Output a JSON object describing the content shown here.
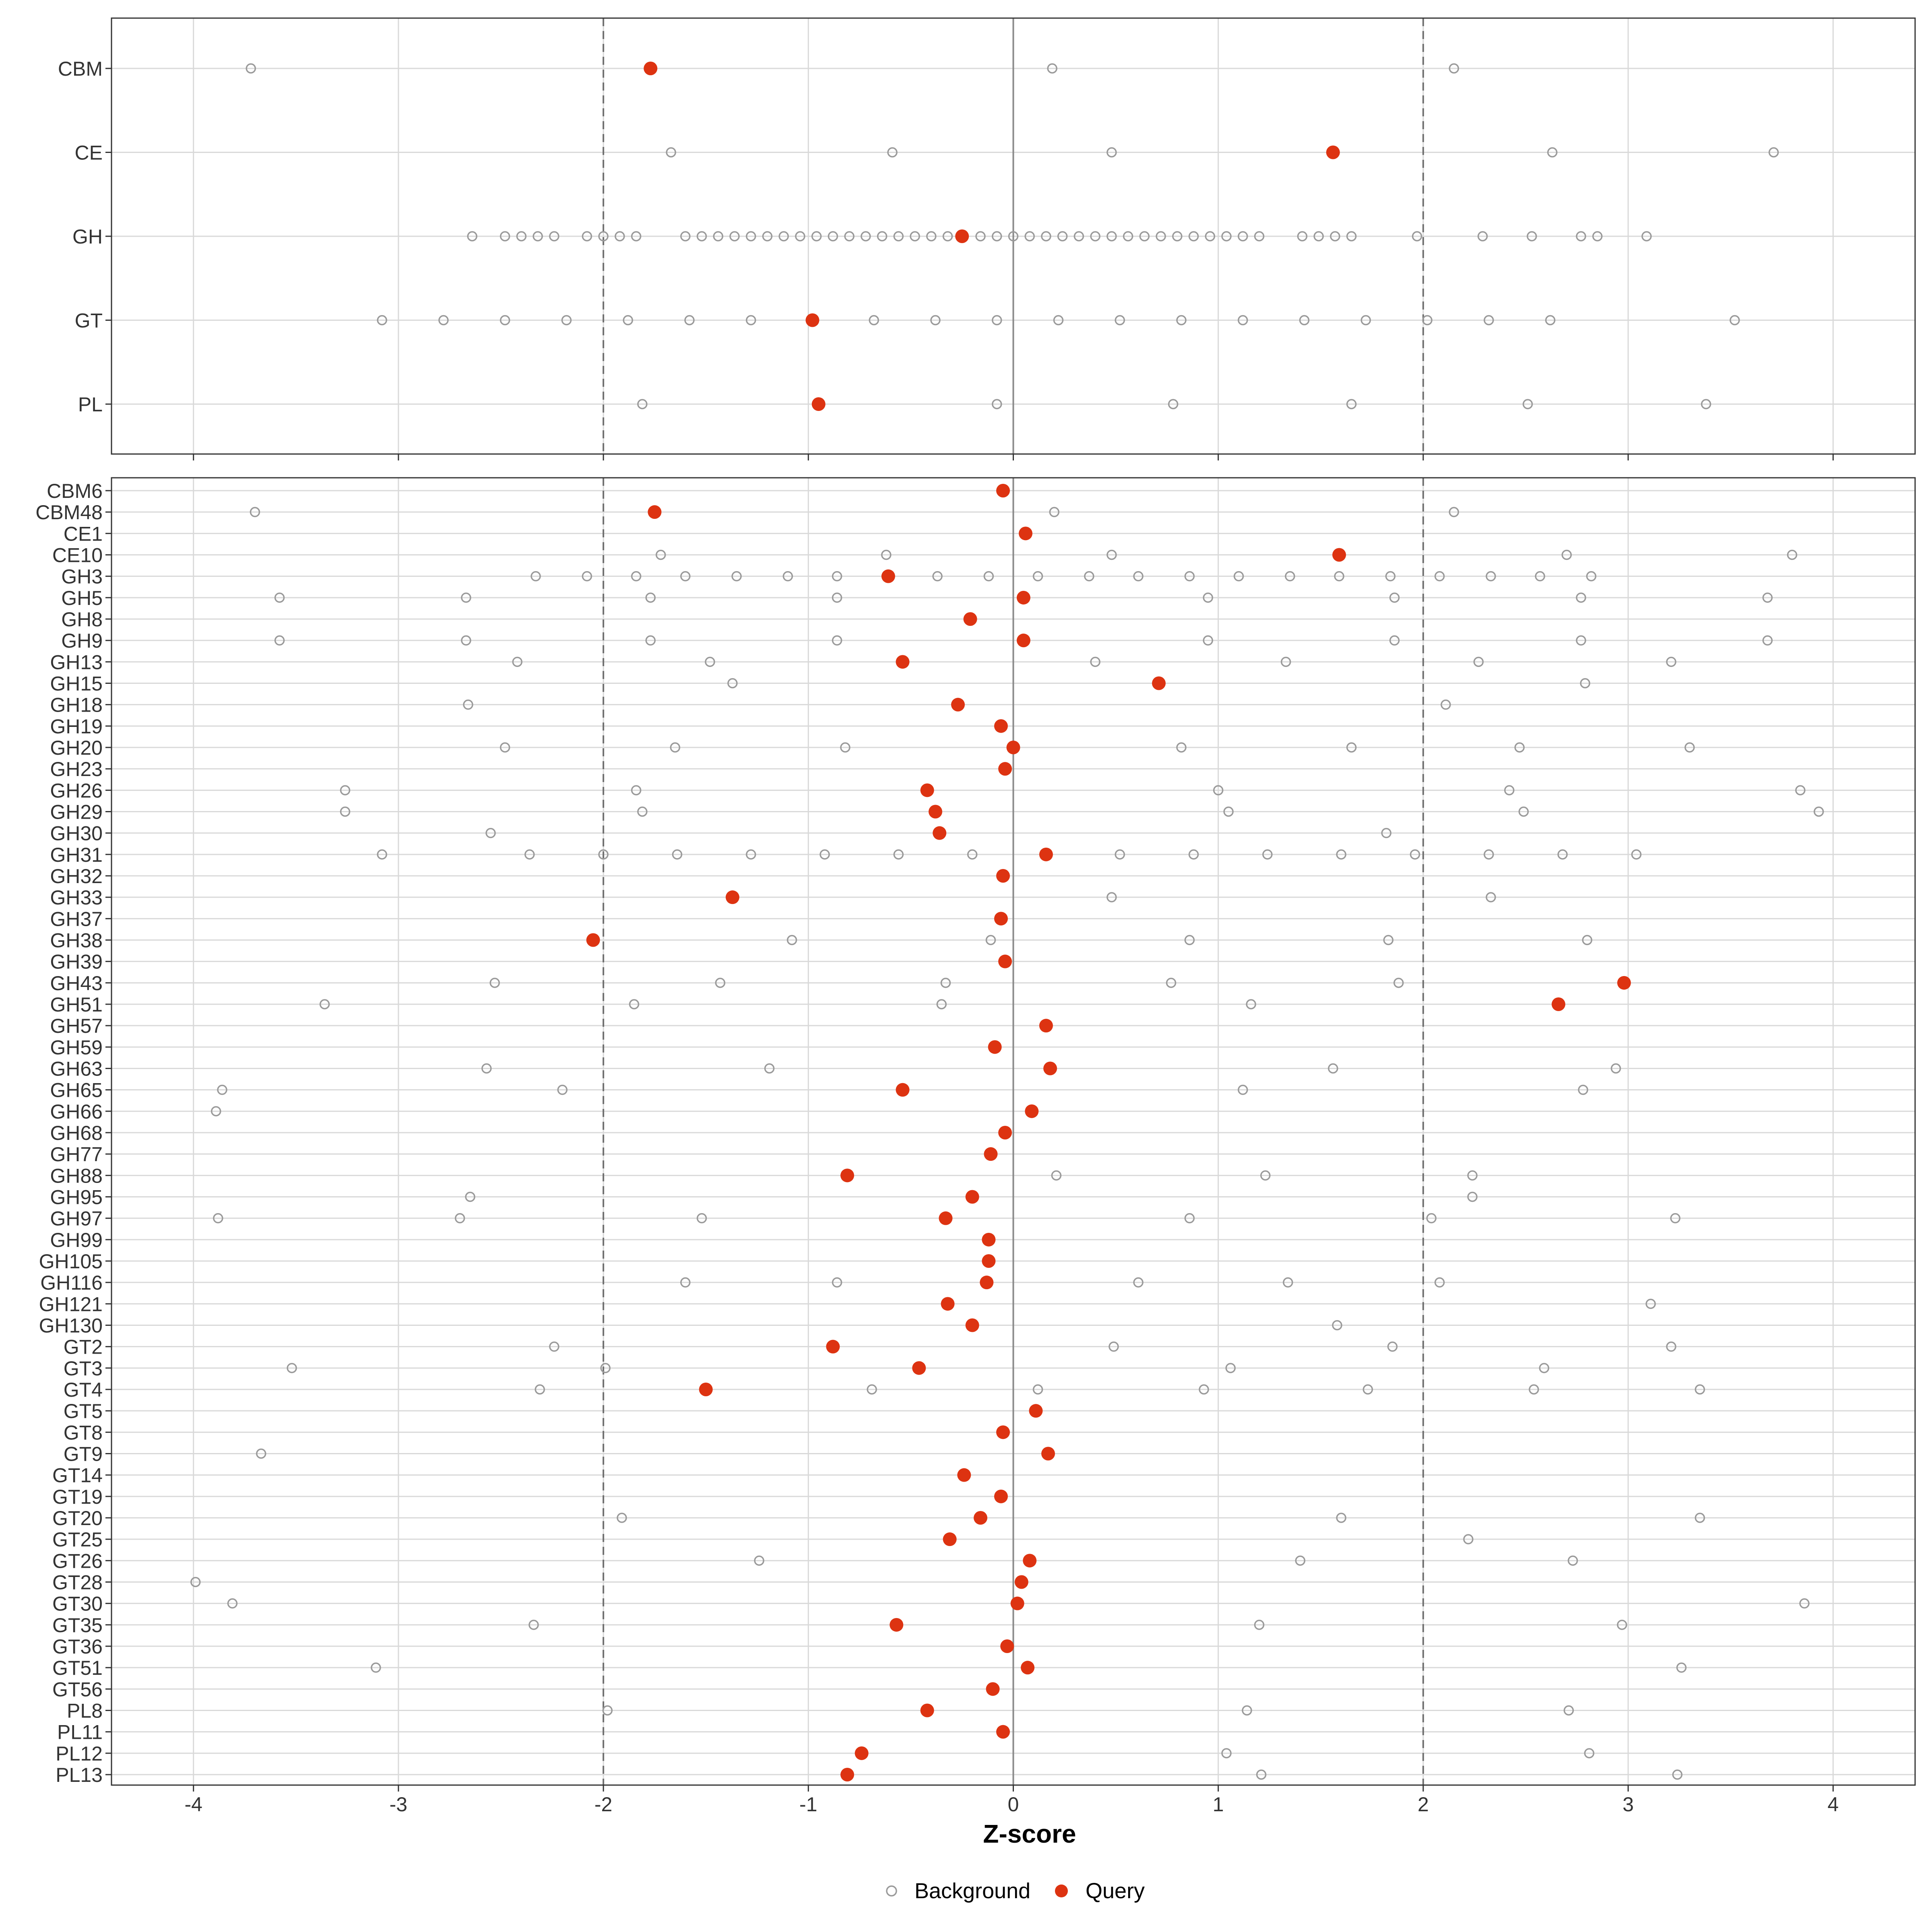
{
  "chart_data": [
    {
      "type": "scatter",
      "panel": "top",
      "categories": [
        "CBM",
        "CE",
        "GH",
        "GT",
        "PL"
      ],
      "xlim": [
        -4.4,
        4.4
      ],
      "series": [
        {
          "name": "Background",
          "points": {
            "CBM": [
              -3.72,
              0.19,
              2.15
            ],
            "CE": [
              -1.67,
              -0.59,
              0.48,
              2.63,
              3.71
            ],
            "GH": [
              -2.64,
              -2.48,
              -2.4,
              -2.32,
              -2.24,
              -2.08,
              -2.0,
              -1.92,
              -1.84,
              -1.6,
              -1.52,
              -1.44,
              -1.36,
              -1.28,
              -1.2,
              -1.12,
              -1.04,
              -0.96,
              -0.88,
              -0.8,
              -0.72,
              -0.64,
              -0.56,
              -0.48,
              -0.4,
              -0.32,
              -0.16,
              -0.08,
              0.0,
              0.08,
              0.16,
              0.24,
              0.32,
              0.4,
              0.48,
              0.56,
              0.64,
              0.72,
              0.8,
              0.88,
              0.96,
              1.04,
              1.12,
              1.2,
              1.41,
              1.49,
              1.57,
              1.65,
              1.97,
              2.29,
              2.53,
              2.77,
              2.85,
              3.09
            ],
            "GT": [
              -3.08,
              -2.78,
              -2.48,
              -2.18,
              -1.88,
              -1.58,
              -1.28,
              -0.68,
              -0.38,
              -0.08,
              0.22,
              0.52,
              0.82,
              1.12,
              1.42,
              1.72,
              2.02,
              2.32,
              2.62,
              3.52
            ],
            "PL": [
              -1.81,
              -0.08,
              0.78,
              1.65,
              2.51,
              3.38
            ]
          }
        },
        {
          "name": "Query",
          "points": {
            "CBM": [
              -1.77
            ],
            "CE": [
              1.56
            ],
            "GH": [
              -0.25
            ],
            "GT": [
              -0.98
            ],
            "PL": [
              -0.95
            ]
          }
        }
      ],
      "reference_lines": [
        -2,
        0,
        2
      ]
    },
    {
      "type": "scatter",
      "panel": "bottom",
      "xlabel": "Z-score",
      "xlim": [
        -4.4,
        4.4
      ],
      "xticks": [
        "-4",
        "-3",
        "-2",
        "-1",
        "0",
        "1",
        "2",
        "3",
        "4"
      ],
      "categories": [
        "CBM6",
        "CBM48",
        "CE1",
        "CE10",
        "GH3",
        "GH5",
        "GH8",
        "GH9",
        "GH13",
        "GH15",
        "GH18",
        "GH19",
        "GH20",
        "GH23",
        "GH26",
        "GH29",
        "GH30",
        "GH31",
        "GH32",
        "GH33",
        "GH37",
        "GH38",
        "GH39",
        "GH43",
        "GH51",
        "GH57",
        "GH59",
        "GH63",
        "GH65",
        "GH66",
        "GH68",
        "GH77",
        "GH88",
        "GH95",
        "GH97",
        "GH99",
        "GH105",
        "GH116",
        "GH121",
        "GH130",
        "GT2",
        "GT3",
        "GT4",
        "GT5",
        "GT8",
        "GT9",
        "GT14",
        "GT19",
        "GT20",
        "GT25",
        "GT26",
        "GT28",
        "GT30",
        "GT35",
        "GT36",
        "GT51",
        "GT56",
        "PL8",
        "PL11",
        "PL12",
        "PL13"
      ],
      "series": [
        {
          "name": "Background",
          "points": {
            "CBM48": [
              -3.7,
              0.2,
              2.15
            ],
            "CE10": [
              -1.72,
              -0.62,
              0.48,
              2.7,
              3.8
            ],
            "GH3": [
              -2.33,
              -2.08,
              -1.84,
              -1.6,
              -1.35,
              -1.1,
              -0.86,
              -0.37,
              -0.12,
              0.12,
              0.37,
              0.61,
              0.86,
              1.1,
              1.35,
              1.59,
              1.84,
              2.08,
              2.33,
              2.57,
              2.82
            ],
            "GH5": [
              -3.58,
              -2.67,
              -1.77,
              -0.86,
              0.95,
              1.86,
              2.77,
              3.68
            ],
            "GH9": [
              -3.58,
              -2.67,
              -1.77,
              -0.86,
              0.95,
              1.86,
              2.77,
              3.68
            ],
            "GH13": [
              -2.42,
              -1.48,
              0.4,
              1.33,
              2.27,
              3.21
            ],
            "GH15": [
              -1.37,
              2.79
            ],
            "GH18": [
              -2.66,
              2.11
            ],
            "GH20": [
              -2.48,
              -1.65,
              -0.82,
              0.82,
              1.65,
              2.47,
              3.3
            ],
            "GH26": [
              -3.26,
              -1.84,
              1.0,
              2.42,
              3.84
            ],
            "GH29": [
              -3.26,
              -1.81,
              1.05,
              2.49,
              3.93
            ],
            "GH30": [
              -2.55,
              1.82
            ],
            "GH31": [
              -3.08,
              -2.36,
              -2.0,
              -1.64,
              -1.28,
              -0.92,
              -0.56,
              -0.2,
              0.52,
              0.88,
              1.24,
              1.6,
              1.96,
              2.32,
              2.68,
              3.04
            ],
            "GH33": [
              0.48,
              2.33
            ],
            "GH38": [
              -1.08,
              -0.11,
              0.86,
              1.83,
              2.8
            ],
            "GH43": [
              -2.53,
              -1.43,
              -0.33,
              0.77,
              1.88
            ],
            "GH51": [
              -3.36,
              -1.85,
              -0.35,
              1.16
            ],
            "GH63": [
              -2.57,
              -1.19,
              1.56,
              2.94
            ],
            "GH65": [
              -3.86,
              -2.2,
              1.12,
              2.78
            ],
            "GH66": [
              -3.89
            ],
            "GH88": [
              0.21,
              1.23,
              2.24
            ],
            "GH95": [
              -2.65,
              2.24
            ],
            "GH97": [
              -3.88,
              -2.7,
              -1.52,
              0.86,
              2.04,
              3.23
            ],
            "GH116": [
              -1.6,
              -0.86,
              0.61,
              1.34,
              2.08
            ],
            "GH121": [
              3.11
            ],
            "GH130": [
              1.58
            ],
            "GT2": [
              -2.24,
              0.49,
              1.85,
              3.21
            ],
            "GT3": [
              -3.52,
              -1.99,
              1.06,
              2.59
            ],
            "GT4": [
              -2.31,
              -0.69,
              0.12,
              0.93,
              1.73,
              2.54,
              3.35
            ],
            "GT9": [
              -3.67
            ],
            "GT20": [
              -1.91,
              1.6,
              3.35
            ],
            "GT25": [
              2.22
            ],
            "GT26": [
              -1.24,
              1.4,
              2.73
            ],
            "GT28": [
              -3.99
            ],
            "GT30": [
              -3.81,
              3.86
            ],
            "GT35": [
              -2.34,
              1.2,
              2.97
            ],
            "GT51": [
              -3.11,
              3.26
            ],
            "PL8": [
              -1.98,
              1.14,
              2.71
            ],
            "PL12": [
              1.04,
              2.81
            ],
            "PL13": [
              1.21,
              3.24
            ]
          }
        },
        {
          "name": "Query",
          "points": {
            "CBM6": [
              -0.05
            ],
            "CBM48": [
              -1.75
            ],
            "CE1": [
              0.06
            ],
            "CE10": [
              1.59
            ],
            "GH3": [
              -0.61
            ],
            "GH5": [
              0.05
            ],
            "GH8": [
              -0.21
            ],
            "GH9": [
              0.05
            ],
            "GH13": [
              -0.54
            ],
            "GH15": [
              0.71
            ],
            "GH18": [
              -0.27
            ],
            "GH19": [
              -0.06
            ],
            "GH20": [
              0.0
            ],
            "GH23": [
              -0.04
            ],
            "GH26": [
              -0.42
            ],
            "GH29": [
              -0.38
            ],
            "GH30": [
              -0.36
            ],
            "GH31": [
              0.16
            ],
            "GH32": [
              -0.05
            ],
            "GH33": [
              -1.37
            ],
            "GH37": [
              -0.06
            ],
            "GH38": [
              -2.05
            ],
            "GH39": [
              -0.04
            ],
            "GH43": [
              2.98
            ],
            "GH51": [
              2.66
            ],
            "GH57": [
              0.16
            ],
            "GH59": [
              -0.09
            ],
            "GH63": [
              0.18
            ],
            "GH65": [
              -0.54
            ],
            "GH66": [
              0.09
            ],
            "GH68": [
              -0.04
            ],
            "GH77": [
              -0.11
            ],
            "GH88": [
              -0.81
            ],
            "GH95": [
              -0.2
            ],
            "GH97": [
              -0.33
            ],
            "GH99": [
              -0.12
            ],
            "GH105": [
              -0.12
            ],
            "GH116": [
              -0.13
            ],
            "GH121": [
              -0.32
            ],
            "GH130": [
              -0.2
            ],
            "GT2": [
              -0.88
            ],
            "GT3": [
              -0.46
            ],
            "GT4": [
              -1.5
            ],
            "GT5": [
              0.11
            ],
            "GT8": [
              -0.05
            ],
            "GT9": [
              0.17
            ],
            "GT14": [
              -0.24
            ],
            "GT19": [
              -0.06
            ],
            "GT20": [
              -0.16
            ],
            "GT25": [
              -0.31
            ],
            "GT26": [
              0.08
            ],
            "GT28": [
              0.04
            ],
            "GT30": [
              0.02
            ],
            "GT35": [
              -0.57
            ],
            "GT36": [
              -0.03
            ],
            "GT51": [
              0.07
            ],
            "GT56": [
              -0.1
            ],
            "PL8": [
              -0.42
            ],
            "PL11": [
              -0.05
            ],
            "PL12": [
              -0.74
            ],
            "PL13": [
              -0.81
            ]
          }
        }
      ],
      "reference_lines": [
        -2,
        0,
        2
      ]
    }
  ],
  "legend": {
    "position": "bottom",
    "items": [
      {
        "label": "Background",
        "marker": "open-circle",
        "color": "#9a9a9a"
      },
      {
        "label": "Query",
        "marker": "filled-circle",
        "color": "#dd3311"
      }
    ]
  },
  "colors": {
    "background_point": "#9a9a9a",
    "query_point": "#dd3311",
    "grid": "#d9d9d9",
    "dashed_reference": "#707070",
    "zero_line": "#8a8a8a",
    "panel_border": "#333333"
  },
  "grid": true
}
